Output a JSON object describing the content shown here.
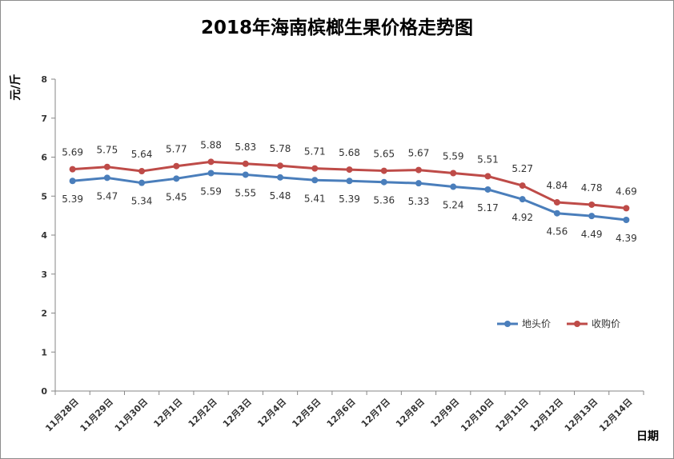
{
  "chart_data": {
    "type": "line",
    "title": "2018年海南槟榔生果价格走势图",
    "xlabel": "日期",
    "ylabel": "元/斤",
    "ylim": [
      0,
      8
    ],
    "yticks": [
      0,
      1,
      2,
      3,
      4,
      5,
      6,
      7,
      8
    ],
    "grid": false,
    "legend_position": "right",
    "categories": [
      "11月28日",
      "11月29日",
      "11月30日",
      "12月1日",
      "12月2日",
      "12月3日",
      "12月4日",
      "12月5日",
      "12月6日",
      "12月7日",
      "12月8日",
      "12月9日",
      "12月10日",
      "12月11日",
      "12月12日",
      "12月13日",
      "12月14日"
    ],
    "series": [
      {
        "name": "地头价",
        "color": "#4a7ebb",
        "label_position": "below",
        "values": [
          5.39,
          5.47,
          5.34,
          5.45,
          5.59,
          5.55,
          5.48,
          5.41,
          5.39,
          5.36,
          5.33,
          5.24,
          5.17,
          4.92,
          4.56,
          4.49,
          4.39
        ]
      },
      {
        "name": "收购价",
        "color": "#be4b48",
        "label_position": "above",
        "values": [
          5.69,
          5.75,
          5.64,
          5.77,
          5.88,
          5.83,
          5.78,
          5.71,
          5.68,
          5.65,
          5.67,
          5.59,
          5.51,
          5.27,
          4.84,
          4.78,
          4.69
        ]
      }
    ]
  }
}
